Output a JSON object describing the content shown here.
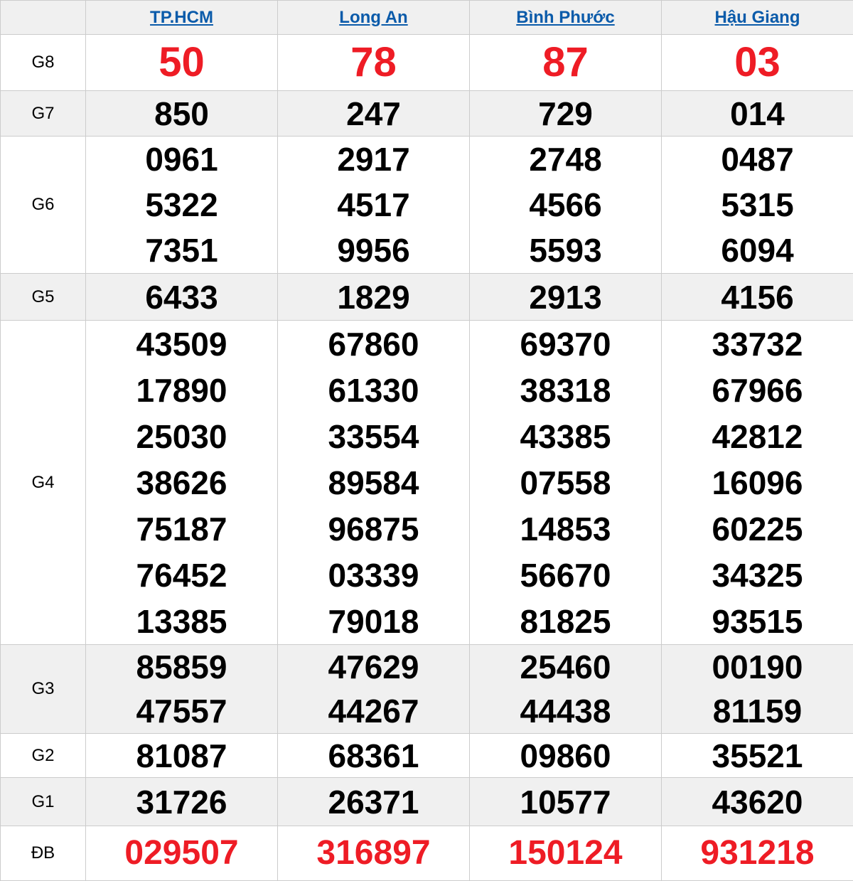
{
  "table": {
    "columns": [
      {
        "key": "tphcm",
        "label": "TP.HCM"
      },
      {
        "key": "longan",
        "label": "Long An"
      },
      {
        "key": "binhphuoc",
        "label": "Bình Phước"
      },
      {
        "key": "haugiang",
        "label": "Hậu Giang"
      }
    ],
    "rows": [
      {
        "key": "g8",
        "label": "G8",
        "style": "red-big",
        "values": [
          [
            "50"
          ],
          [
            "78"
          ],
          [
            "87"
          ],
          [
            "03"
          ]
        ]
      },
      {
        "key": "g7",
        "label": "G7",
        "style": "normal",
        "values": [
          [
            "850"
          ],
          [
            "247"
          ],
          [
            "729"
          ],
          [
            "014"
          ]
        ]
      },
      {
        "key": "g6",
        "label": "G6",
        "style": "normal",
        "values": [
          [
            "0961",
            "5322",
            "7351"
          ],
          [
            "2917",
            "4517",
            "9956"
          ],
          [
            "2748",
            "4566",
            "5593"
          ],
          [
            "0487",
            "5315",
            "6094"
          ]
        ]
      },
      {
        "key": "g5",
        "label": "G5",
        "style": "normal",
        "values": [
          [
            "6433"
          ],
          [
            "1829"
          ],
          [
            "2913"
          ],
          [
            "4156"
          ]
        ]
      },
      {
        "key": "g4",
        "label": "G4",
        "style": "normal",
        "values": [
          [
            "43509",
            "17890",
            "25030",
            "38626",
            "75187",
            "76452",
            "13385"
          ],
          [
            "67860",
            "61330",
            "33554",
            "89584",
            "96875",
            "03339",
            "79018"
          ],
          [
            "69370",
            "38318",
            "43385",
            "07558",
            "14853",
            "56670",
            "81825"
          ],
          [
            "33732",
            "67966",
            "42812",
            "16096",
            "60225",
            "34325",
            "93515"
          ]
        ]
      },
      {
        "key": "g3",
        "label": "G3",
        "style": "normal",
        "values": [
          [
            "85859",
            "47557"
          ],
          [
            "47629",
            "44267"
          ],
          [
            "25460",
            "44438"
          ],
          [
            "00190",
            "81159"
          ]
        ]
      },
      {
        "key": "g2",
        "label": "G2",
        "style": "normal",
        "values": [
          [
            "81087"
          ],
          [
            "68361"
          ],
          [
            "09860"
          ],
          [
            "35521"
          ]
        ]
      },
      {
        "key": "g1",
        "label": "G1",
        "style": "normal",
        "values": [
          [
            "31726"
          ],
          [
            "26371"
          ],
          [
            "10577"
          ],
          [
            "43620"
          ]
        ]
      },
      {
        "key": "db",
        "label": "ĐB",
        "style": "red-special",
        "values": [
          [
            "029507"
          ],
          [
            "316897"
          ],
          [
            "150124"
          ],
          [
            "931218"
          ]
        ]
      }
    ]
  },
  "colors": {
    "highlight_red": "#ee1c25",
    "link_blue": "#0b5baa",
    "stripe_gray": "#f0f0f0",
    "border_gray": "#cccccc",
    "number_black": "#000000"
  }
}
